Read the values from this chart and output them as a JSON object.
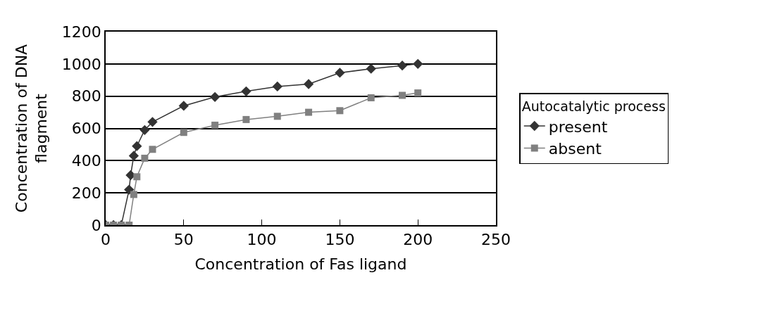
{
  "chart_data": {
    "type": "line",
    "xlabel": "Concentration of Fas ligand",
    "ylabel": "Concentration of DNA flagment",
    "legend_title": "Autocatalytic process",
    "xlim": [
      0,
      250
    ],
    "xticks": [
      0,
      50,
      100,
      150,
      200,
      250
    ],
    "ylim": [
      0,
      1200
    ],
    "yticks": [
      0,
      200,
      400,
      600,
      800,
      1000,
      1200
    ],
    "grid": "y",
    "legend": "right",
    "series": [
      {
        "name": "present",
        "color": "#333333",
        "marker": "diamond",
        "x": [
          0,
          5,
          10,
          15,
          16,
          18,
          20,
          25,
          30,
          50,
          70,
          90,
          110,
          130,
          150,
          170,
          190,
          200
        ],
        "values": [
          0,
          0,
          0,
          220,
          310,
          430,
          490,
          590,
          640,
          740,
          795,
          830,
          860,
          875,
          945,
          970,
          990,
          1000
        ]
      },
      {
        "name": "absent",
        "color": "#808080",
        "marker": "square",
        "x": [
          0,
          5,
          10,
          15,
          18,
          20,
          25,
          30,
          50,
          70,
          90,
          110,
          130,
          150,
          170,
          190,
          200
        ],
        "values": [
          0,
          0,
          0,
          0,
          190,
          300,
          415,
          470,
          575,
          620,
          655,
          675,
          700,
          710,
          790,
          805,
          820
        ]
      }
    ]
  }
}
